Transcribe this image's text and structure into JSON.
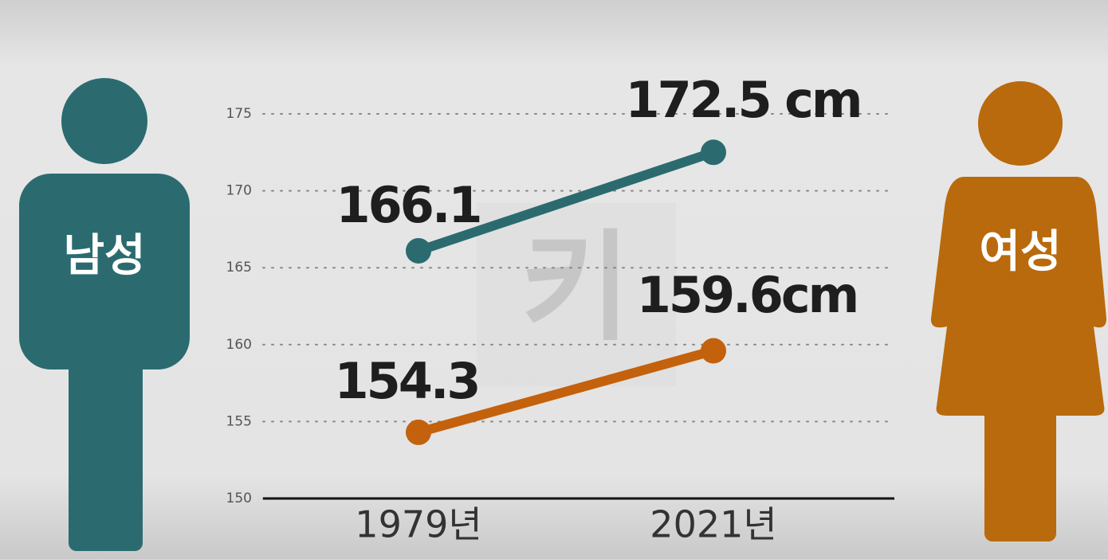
{
  "chart_data": {
    "type": "line",
    "watermark": "키",
    "categories": [
      "1979년",
      "2021년"
    ],
    "series": [
      {
        "name": "남성",
        "color": "#2b6b70",
        "values": [
          166.1,
          172.5
        ],
        "value_labels": [
          "166.1",
          "172.5 cm"
        ]
      },
      {
        "name": "여성",
        "color": "#c4610c",
        "values": [
          154.3,
          159.6
        ],
        "value_labels": [
          "154.3",
          "159.6cm"
        ]
      }
    ],
    "ylim": [
      150,
      175
    ],
    "yticks": [
      150,
      155,
      160,
      165,
      170,
      175
    ],
    "grid": true
  }
}
